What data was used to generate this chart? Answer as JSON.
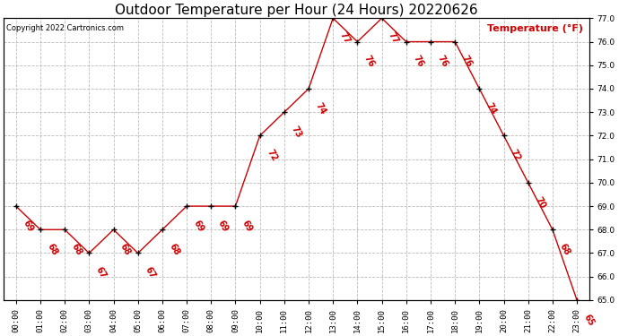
{
  "title": "Outdoor Temperature per Hour (24 Hours) 20220626",
  "copyright_text": "Copyright 2022 Cartronics.com",
  "ylabel": "Temperature (°F)",
  "hours": [
    0,
    1,
    2,
    3,
    4,
    5,
    6,
    7,
    8,
    9,
    10,
    11,
    12,
    13,
    14,
    15,
    16,
    17,
    18,
    19,
    20,
    21,
    22,
    23
  ],
  "hour_labels": [
    "00:00",
    "01:00",
    "02:00",
    "03:00",
    "04:00",
    "05:00",
    "06:00",
    "07:00",
    "08:00",
    "09:00",
    "10:00",
    "11:00",
    "12:00",
    "13:00",
    "14:00",
    "15:00",
    "16:00",
    "17:00",
    "18:00",
    "19:00",
    "20:00",
    "21:00",
    "22:00",
    "23:00"
  ],
  "temperatures": [
    69,
    68,
    68,
    67,
    68,
    67,
    68,
    69,
    69,
    69,
    72,
    73,
    74,
    77,
    76,
    77,
    76,
    76,
    76,
    74,
    72,
    70,
    68,
    65
  ],
  "ylim": [
    65.0,
    77.0
  ],
  "yticks": [
    65.0,
    66.0,
    67.0,
    68.0,
    69.0,
    70.0,
    71.0,
    72.0,
    73.0,
    74.0,
    75.0,
    76.0,
    77.0
  ],
  "line_color": "#cc0000",
  "marker_color": "#000000",
  "label_color": "#cc0000",
  "title_color": "#000000",
  "copyright_color": "#000000",
  "ylabel_color": "#cc0000",
  "background_color": "#ffffff",
  "grid_color": "#bbbbbb",
  "title_fontsize": 11,
  "label_fontsize": 6.5,
  "annot_fontsize": 7,
  "ylabel_fontsize": 8,
  "copyright_fontsize": 6
}
